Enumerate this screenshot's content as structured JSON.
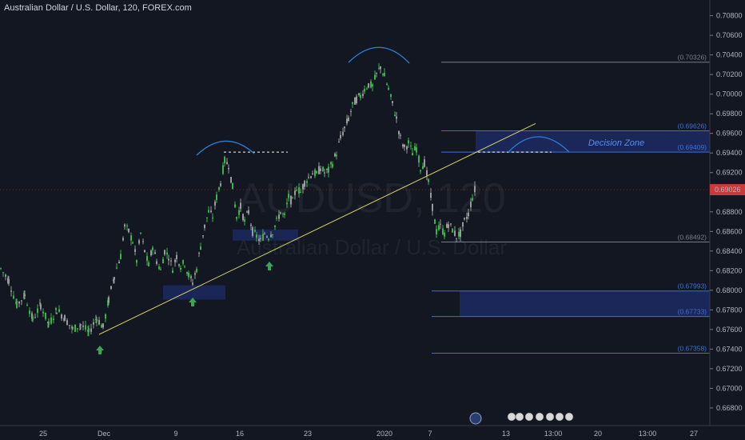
{
  "header": {
    "title": "Australian Dollar / U.S. Dollar, 120, FOREX.com"
  },
  "watermark": {
    "symbol": "AUDUSD, 120",
    "name": "Australian Dollar / U.S. Dollar"
  },
  "colors": {
    "background": "#131722",
    "up": "#26a69a",
    "up_green": "#2e9e3e",
    "down": "#ef5350",
    "trendline": "#d6d26a",
    "zone": "#1e2e6b",
    "level_line": "#3d6fd6",
    "arrow": "#3aa655",
    "arc": "#2f7fd1",
    "price_badge": "#c93a3a"
  },
  "annotations": {
    "decision_zone": "Decision Zone",
    "arrow_icons": [
      "up-arrow-icon",
      "up-arrow-icon",
      "up-arrow-icon"
    ]
  },
  "toolbar_icons": [
    "globe-icon",
    "event-icons"
  ],
  "chart_data": {
    "type": "candlestick",
    "title": "Australian Dollar / U.S. Dollar, 120, FOREX.com",
    "ylim": [
      0.6662,
      0.7096
    ],
    "y_ticks": [
      "0.70800",
      "0.70600",
      "0.70400",
      "0.70200",
      "0.70000",
      "0.69800",
      "0.69600",
      "0.69400",
      "0.69200",
      "0.69000",
      "0.68800",
      "0.68600",
      "0.68400",
      "0.68200",
      "0.68000",
      "0.67800",
      "0.67600",
      "0.67400",
      "0.67200",
      "0.67000",
      "0.66800"
    ],
    "x_ticks": [
      "25",
      "Dec",
      "9",
      "16",
      "23",
      "2020",
      "7",
      "13",
      "13:00",
      "20",
      "13:00",
      "27"
    ],
    "current_price": "0.69026",
    "levels": [
      {
        "label": "(0.70326)",
        "value": 0.70326,
        "color": "#787b86"
      },
      {
        "label": "(0.69626)",
        "value": 0.69626,
        "color": "#3d6fd6"
      },
      {
        "label": "(0.69409)",
        "value": 0.69409,
        "color": "#3d6fd6"
      },
      {
        "label": "(0.68492)",
        "value": 0.68492,
        "color": "#787b86"
      },
      {
        "label": "(0.67993)",
        "value": 0.67993,
        "color": "#3d6fd6"
      },
      {
        "label": "(0.67733)",
        "value": 0.67733,
        "color": "#3d6fd6"
      },
      {
        "label": "(0.67358)",
        "value": 0.67358,
        "color": "#3d6fd6"
      }
    ],
    "zones": [
      {
        "name": "decision-zone",
        "from": 0.69409,
        "to": 0.69626
      },
      {
        "name": "lower-zone",
        "from": 0.67733,
        "to": 0.67993
      }
    ],
    "price_path": [
      [
        0,
        0.6822
      ],
      [
        10,
        0.681
      ],
      [
        20,
        0.6785
      ],
      [
        30,
        0.6795
      ],
      [
        40,
        0.677
      ],
      [
        50,
        0.6785
      ],
      [
        60,
        0.6765
      ],
      [
        70,
        0.678
      ],
      [
        80,
        0.6772
      ],
      [
        90,
        0.676
      ],
      [
        100,
        0.6765
      ],
      [
        110,
        0.6757
      ],
      [
        120,
        0.6772
      ],
      [
        128,
        0.6762
      ],
      [
        135,
        0.679
      ],
      [
        142,
        0.6815
      ],
      [
        150,
        0.6835
      ],
      [
        155,
        0.6865
      ],
      [
        160,
        0.686
      ],
      [
        165,
        0.685
      ],
      [
        170,
        0.683
      ],
      [
        175,
        0.6858
      ],
      [
        180,
        0.684
      ],
      [
        185,
        0.6825
      ],
      [
        190,
        0.6845
      ],
      [
        195,
        0.683
      ],
      [
        200,
        0.682
      ],
      [
        205,
        0.684
      ],
      [
        210,
        0.6835
      ],
      [
        215,
        0.6822
      ],
      [
        220,
        0.6835
      ],
      [
        225,
        0.6825
      ],
      [
        230,
        0.6828
      ],
      [
        235,
        0.6815
      ],
      [
        240,
        0.6808
      ],
      [
        245,
        0.6822
      ],
      [
        250,
        0.6845
      ],
      [
        255,
        0.6865
      ],
      [
        260,
        0.688
      ],
      [
        265,
        0.6875
      ],
      [
        270,
        0.6895
      ],
      [
        275,
        0.691
      ],
      [
        280,
        0.6932
      ],
      [
        285,
        0.6928
      ],
      [
        290,
        0.6905
      ],
      [
        295,
        0.6875
      ],
      [
        300,
        0.6885
      ],
      [
        305,
        0.687
      ],
      [
        310,
        0.688
      ],
      [
        315,
        0.686
      ],
      [
        320,
        0.6855
      ],
      [
        325,
        0.685
      ],
      [
        330,
        0.6858
      ],
      [
        335,
        0.6855
      ],
      [
        340,
        0.686
      ],
      [
        345,
        0.687
      ],
      [
        350,
        0.688
      ],
      [
        355,
        0.6875
      ],
      [
        360,
        0.6895
      ],
      [
        365,
        0.689
      ],
      [
        370,
        0.6905
      ],
      [
        375,
        0.69
      ],
      [
        380,
        0.691
      ],
      [
        385,
        0.6915
      ],
      [
        390,
        0.692
      ],
      [
        395,
        0.6918
      ],
      [
        400,
        0.6925
      ],
      [
        405,
        0.692
      ],
      [
        410,
        0.6922
      ],
      [
        415,
        0.693
      ],
      [
        420,
        0.694
      ],
      [
        425,
        0.6955
      ],
      [
        430,
        0.6965
      ],
      [
        435,
        0.6975
      ],
      [
        440,
        0.6988
      ],
      [
        445,
        0.6995
      ],
      [
        450,
        0.6998
      ],
      [
        455,
        0.7005
      ],
      [
        460,
        0.701
      ],
      [
        465,
        0.7008
      ],
      [
        470,
        0.702
      ],
      [
        475,
        0.7028
      ],
      [
        480,
        0.7018
      ],
      [
        485,
        0.7005
      ],
      [
        490,
        0.699
      ],
      [
        495,
        0.6975
      ],
      [
        500,
        0.6955
      ],
      [
        505,
        0.6945
      ],
      [
        510,
        0.695
      ],
      [
        515,
        0.694
      ],
      [
        520,
        0.6945
      ],
      [
        525,
        0.6925
      ],
      [
        530,
        0.693
      ],
      [
        535,
        0.691
      ],
      [
        540,
        0.6885
      ],
      [
        545,
        0.686
      ],
      [
        550,
        0.6865
      ],
      [
        555,
        0.6858
      ],
      [
        560,
        0.6868
      ],
      [
        565,
        0.6862
      ],
      [
        570,
        0.6855
      ],
      [
        575,
        0.6858
      ],
      [
        580,
        0.687
      ],
      [
        585,
        0.6878
      ],
      [
        590,
        0.6895
      ],
      [
        595,
        0.6908
      ]
    ]
  }
}
